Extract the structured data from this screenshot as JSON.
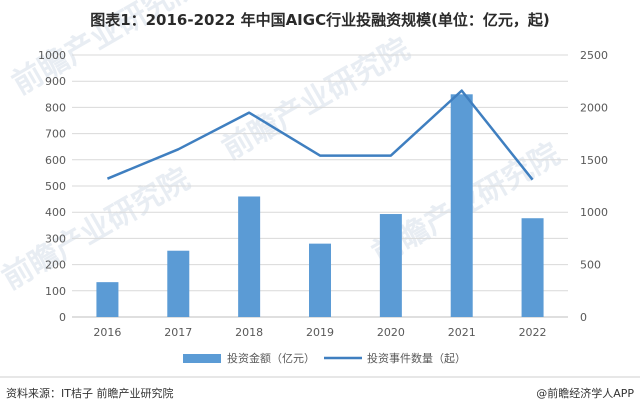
{
  "title": "图表1：2016-2022 年中国AIGC行业投融资规模(单位：亿元，起)",
  "footer": {
    "source": "资料来源：IT桔子 前瞻产业研究院",
    "brand": "@前瞻经济学人APP"
  },
  "watermark": "前瞻产业研究院",
  "colors": {
    "bar": "#5b9bd5",
    "line": "#3f7fc0",
    "grid": "#d9d9d9",
    "axis": "#bfbfbf"
  },
  "chart_data": {
    "type": "bar",
    "categories": [
      "2016",
      "2017",
      "2018",
      "2019",
      "2020",
      "2021",
      "2022"
    ],
    "series": [
      {
        "name": "投资金额（亿元）",
        "type": "bar",
        "axis": "left",
        "values": [
          133,
          253,
          460,
          280,
          393,
          850,
          377
        ]
      },
      {
        "name": "投资事件数量（起）",
        "type": "line",
        "axis": "right",
        "values": [
          1320,
          1600,
          1950,
          1540,
          1540,
          2160,
          1310
        ]
      }
    ],
    "y_left": {
      "min": 0,
      "max": 1000,
      "ticks": [
        0,
        100,
        200,
        300,
        400,
        500,
        600,
        700,
        800,
        900,
        1000
      ]
    },
    "y_right": {
      "min": 0,
      "max": 2500,
      "ticks": [
        0,
        500,
        1000,
        1500,
        2000,
        2500
      ]
    },
    "grid": true,
    "legend": "bottom"
  }
}
